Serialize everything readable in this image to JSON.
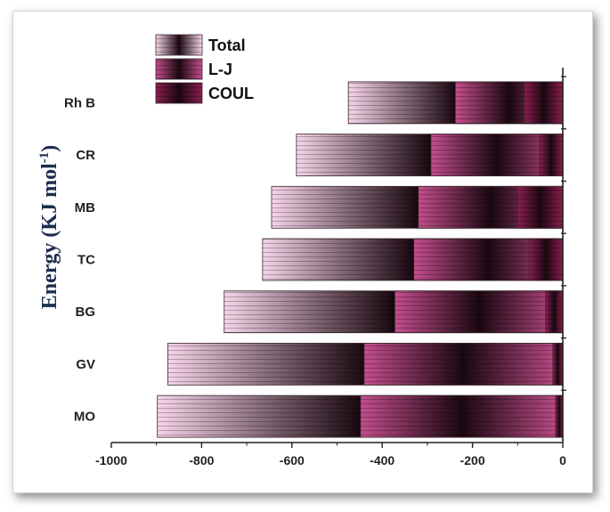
{
  "chart_data": {
    "type": "bar",
    "orientation": "horizontal",
    "stacking": "overlaid",
    "categories": [
      "Rh B",
      "CR",
      "MB",
      "TC",
      "BG",
      "GV",
      "MO"
    ],
    "series": [
      {
        "name": "Total",
        "values": [
          -475,
          -590,
          -645,
          -665,
          -750,
          -875,
          -898
        ]
      },
      {
        "name": "L-J",
        "values": [
          -238,
          -292,
          -320,
          -330,
          -372,
          -440,
          -448
        ]
      },
      {
        "name": "COUL",
        "values": [
          -85,
          -52,
          -100,
          -75,
          -38,
          -22,
          -16
        ]
      }
    ],
    "colors": {
      "Total": {
        "edge": "#f7d4e9",
        "mid": "#1a0810"
      },
      "L-J": {
        "edge": "#c44e8d",
        "mid": "#1a0810"
      },
      "COUL": {
        "edge": "#8e1e52",
        "mid": "#1a0810"
      }
    },
    "xlim": [
      -1000,
      0
    ],
    "xticks": [
      -1000,
      -800,
      -600,
      -400,
      -200,
      0
    ],
    "xtick_labels": [
      "-1000",
      "-800",
      "-600",
      "-400",
      "-200",
      "0"
    ],
    "ylabel": {
      "main": "Energy (KJ mol",
      "sup": "-1",
      "close": ")"
    },
    "legend_position": "top-left",
    "grid": false
  }
}
